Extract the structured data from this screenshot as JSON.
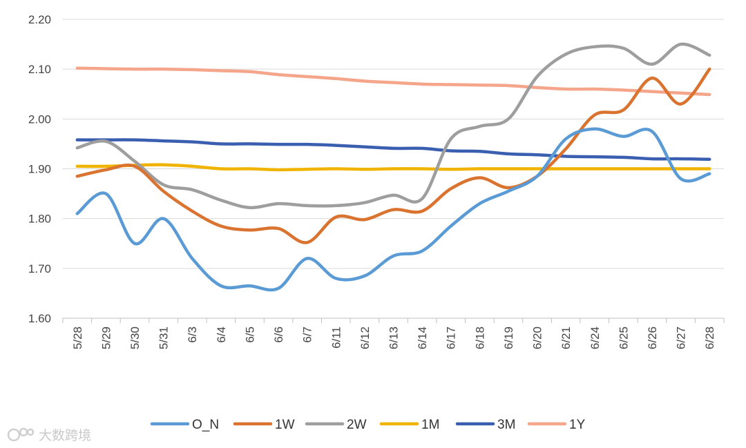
{
  "chart_data": {
    "type": "line",
    "title": "",
    "xlabel": "",
    "ylabel": "",
    "ylim": [
      1.6,
      2.2
    ],
    "yticks": [
      "1.60",
      "1.70",
      "1.80",
      "1.90",
      "2.00",
      "2.10",
      "2.20"
    ],
    "grid": true,
    "legend_position": "bottom",
    "categories": [
      "5/28",
      "5/29",
      "5/30",
      "5/31",
      "6/3",
      "6/4",
      "6/5",
      "6/6",
      "6/7",
      "6/11",
      "6/12",
      "6/13",
      "6/14",
      "6/17",
      "6/18",
      "6/19",
      "6/20",
      "6/21",
      "6/24",
      "6/25",
      "6/26",
      "6/27",
      "6/28"
    ],
    "series": [
      {
        "name": "O_N",
        "color": "#5b9bd5",
        "values": [
          1.81,
          1.85,
          1.75,
          1.8,
          1.72,
          1.665,
          1.665,
          1.66,
          1.72,
          1.68,
          1.685,
          1.725,
          1.735,
          1.785,
          1.83,
          1.855,
          1.885,
          1.96,
          1.98,
          1.965,
          1.975,
          1.88,
          1.89
        ]
      },
      {
        "name": "1W",
        "color": "#d9732f",
        "values": [
          1.885,
          1.898,
          1.905,
          1.855,
          1.815,
          1.785,
          1.777,
          1.78,
          1.752,
          1.803,
          1.798,
          1.818,
          1.815,
          1.86,
          1.882,
          1.862,
          1.885,
          1.94,
          2.008,
          2.018,
          2.082,
          2.03,
          2.1
        ]
      },
      {
        "name": "2W",
        "color": "#9e9e9e",
        "values": [
          1.942,
          1.955,
          1.915,
          1.868,
          1.858,
          1.837,
          1.822,
          1.83,
          1.826,
          1.826,
          1.832,
          1.847,
          1.84,
          1.96,
          1.985,
          2.0,
          2.085,
          2.13,
          2.145,
          2.142,
          2.11,
          2.15,
          2.128
        ]
      },
      {
        "name": "1M",
        "color": "#f0b400",
        "values": [
          1.905,
          1.905,
          1.907,
          1.908,
          1.905,
          1.9,
          1.9,
          1.898,
          1.899,
          1.9,
          1.899,
          1.9,
          1.9,
          1.899,
          1.9,
          1.9,
          1.9,
          1.9,
          1.9,
          1.9,
          1.9,
          1.9,
          1.9
        ]
      },
      {
        "name": "3M",
        "color": "#3b5fb0",
        "values": [
          1.958,
          1.958,
          1.958,
          1.956,
          1.954,
          1.95,
          1.95,
          1.949,
          1.949,
          1.947,
          1.944,
          1.941,
          1.941,
          1.936,
          1.935,
          1.93,
          1.928,
          1.925,
          1.924,
          1.923,
          1.92,
          1.92,
          1.919
        ]
      },
      {
        "name": "1Y",
        "color": "#f4a58a",
        "values": [
          2.102,
          2.101,
          2.1,
          2.1,
          2.099,
          2.097,
          2.095,
          2.089,
          2.085,
          2.081,
          2.076,
          2.073,
          2.07,
          2.069,
          2.068,
          2.067,
          2.063,
          2.06,
          2.06,
          2.058,
          2.055,
          2.052,
          2.049
        ]
      }
    ]
  },
  "watermark": {
    "text": "大数跨境"
  }
}
